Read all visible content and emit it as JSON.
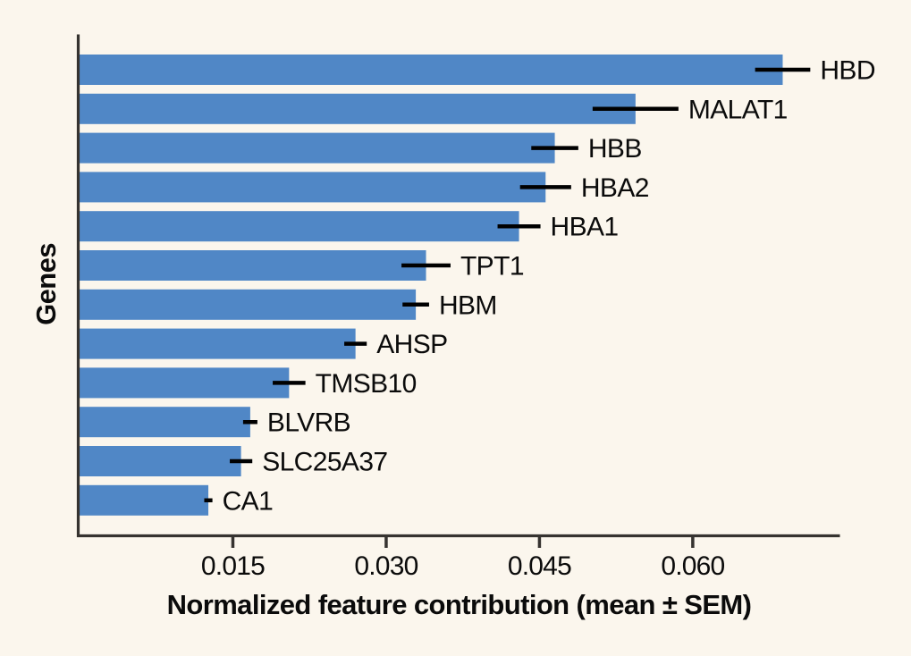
{
  "page": {
    "background_color": "#FBF6ED",
    "title": ""
  },
  "chart_data": {
    "type": "bar",
    "orientation": "horizontal",
    "title": "",
    "xlabel": "Normalized feature contribution (mean ± SEM)",
    "ylabel": "Genes",
    "categories": [
      "HBD",
      "MALAT1",
      "HBB",
      "HBA2",
      "HBA1",
      "TPT1",
      "HBM",
      "AHSP",
      "TMSB10",
      "BLVRB",
      "SLC25A37",
      "CA1"
    ],
    "series": [
      {
        "name": "mean",
        "values": [
          0.0688,
          0.0544,
          0.0465,
          0.0456,
          0.043,
          0.0339,
          0.0329,
          0.027,
          0.0205,
          0.0167,
          0.0158,
          0.0126
        ]
      },
      {
        "name": "sem",
        "values": [
          0.0027,
          0.0042,
          0.0023,
          0.0025,
          0.0021,
          0.0024,
          0.0013,
          0.0011,
          0.0016,
          0.0007,
          0.0011,
          0.0004
        ]
      }
    ],
    "x_tick_values": [
      0.015,
      0.03,
      0.045,
      0.06
    ],
    "x_tick_labels": [
      "0.015",
      "0.030",
      "0.045",
      "0.060"
    ],
    "xlim": [
      0,
      0.0744
    ],
    "grid": false,
    "legend": false,
    "colors": {
      "bar": "#5087C6",
      "error_bar": "#000000",
      "spine": "#363330",
      "text": "#0B0B0B"
    }
  }
}
